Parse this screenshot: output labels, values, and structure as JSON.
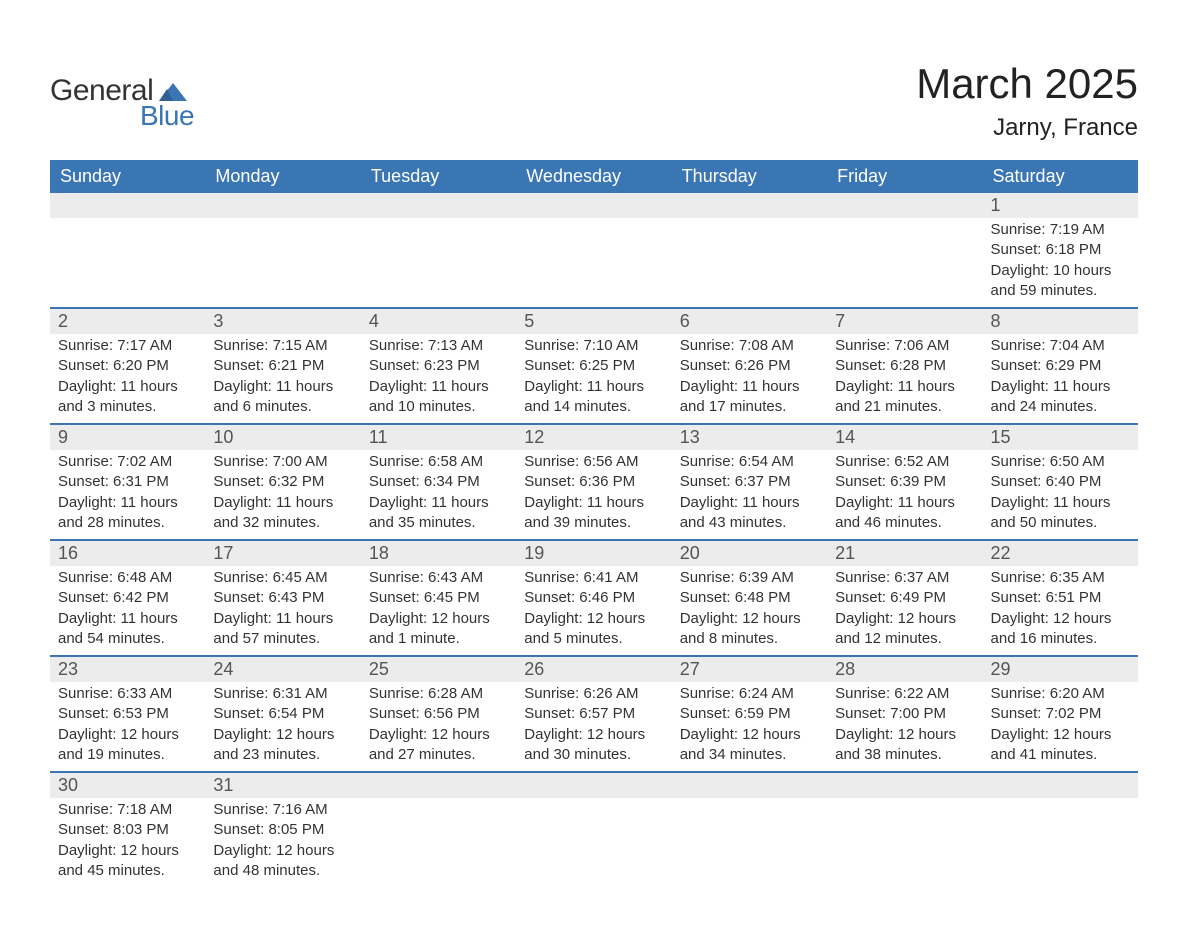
{
  "logo": {
    "text1": "General",
    "text2": "Blue",
    "shape_color": "#3a75b4"
  },
  "title": "March 2025",
  "location": "Jarny, France",
  "colors": {
    "header_bg": "#3a75b4",
    "header_text": "#ffffff",
    "daynum_bg": "#ececec",
    "row_divider": "#3a75b4",
    "text": "#333333",
    "daynum_text": "#555555",
    "page_bg": "#ffffff"
  },
  "day_headers": [
    "Sunday",
    "Monday",
    "Tuesday",
    "Wednesday",
    "Thursday",
    "Friday",
    "Saturday"
  ],
  "weeks": [
    [
      null,
      null,
      null,
      null,
      null,
      null,
      {
        "n": "1",
        "sr": "Sunrise: 7:19 AM",
        "ss": "Sunset: 6:18 PM",
        "dl": "Daylight: 10 hours and 59 minutes."
      }
    ],
    [
      {
        "n": "2",
        "sr": "Sunrise: 7:17 AM",
        "ss": "Sunset: 6:20 PM",
        "dl": "Daylight: 11 hours and 3 minutes."
      },
      {
        "n": "3",
        "sr": "Sunrise: 7:15 AM",
        "ss": "Sunset: 6:21 PM",
        "dl": "Daylight: 11 hours and 6 minutes."
      },
      {
        "n": "4",
        "sr": "Sunrise: 7:13 AM",
        "ss": "Sunset: 6:23 PM",
        "dl": "Daylight: 11 hours and 10 minutes."
      },
      {
        "n": "5",
        "sr": "Sunrise: 7:10 AM",
        "ss": "Sunset: 6:25 PM",
        "dl": "Daylight: 11 hours and 14 minutes."
      },
      {
        "n": "6",
        "sr": "Sunrise: 7:08 AM",
        "ss": "Sunset: 6:26 PM",
        "dl": "Daylight: 11 hours and 17 minutes."
      },
      {
        "n": "7",
        "sr": "Sunrise: 7:06 AM",
        "ss": "Sunset: 6:28 PM",
        "dl": "Daylight: 11 hours and 21 minutes."
      },
      {
        "n": "8",
        "sr": "Sunrise: 7:04 AM",
        "ss": "Sunset: 6:29 PM",
        "dl": "Daylight: 11 hours and 24 minutes."
      }
    ],
    [
      {
        "n": "9",
        "sr": "Sunrise: 7:02 AM",
        "ss": "Sunset: 6:31 PM",
        "dl": "Daylight: 11 hours and 28 minutes."
      },
      {
        "n": "10",
        "sr": "Sunrise: 7:00 AM",
        "ss": "Sunset: 6:32 PM",
        "dl": "Daylight: 11 hours and 32 minutes."
      },
      {
        "n": "11",
        "sr": "Sunrise: 6:58 AM",
        "ss": "Sunset: 6:34 PM",
        "dl": "Daylight: 11 hours and 35 minutes."
      },
      {
        "n": "12",
        "sr": "Sunrise: 6:56 AM",
        "ss": "Sunset: 6:36 PM",
        "dl": "Daylight: 11 hours and 39 minutes."
      },
      {
        "n": "13",
        "sr": "Sunrise: 6:54 AM",
        "ss": "Sunset: 6:37 PM",
        "dl": "Daylight: 11 hours and 43 minutes."
      },
      {
        "n": "14",
        "sr": "Sunrise: 6:52 AM",
        "ss": "Sunset: 6:39 PM",
        "dl": "Daylight: 11 hours and 46 minutes."
      },
      {
        "n": "15",
        "sr": "Sunrise: 6:50 AM",
        "ss": "Sunset: 6:40 PM",
        "dl": "Daylight: 11 hours and 50 minutes."
      }
    ],
    [
      {
        "n": "16",
        "sr": "Sunrise: 6:48 AM",
        "ss": "Sunset: 6:42 PM",
        "dl": "Daylight: 11 hours and 54 minutes."
      },
      {
        "n": "17",
        "sr": "Sunrise: 6:45 AM",
        "ss": "Sunset: 6:43 PM",
        "dl": "Daylight: 11 hours and 57 minutes."
      },
      {
        "n": "18",
        "sr": "Sunrise: 6:43 AM",
        "ss": "Sunset: 6:45 PM",
        "dl": "Daylight: 12 hours and 1 minute."
      },
      {
        "n": "19",
        "sr": "Sunrise: 6:41 AM",
        "ss": "Sunset: 6:46 PM",
        "dl": "Daylight: 12 hours and 5 minutes."
      },
      {
        "n": "20",
        "sr": "Sunrise: 6:39 AM",
        "ss": "Sunset: 6:48 PM",
        "dl": "Daylight: 12 hours and 8 minutes."
      },
      {
        "n": "21",
        "sr": "Sunrise: 6:37 AM",
        "ss": "Sunset: 6:49 PM",
        "dl": "Daylight: 12 hours and 12 minutes."
      },
      {
        "n": "22",
        "sr": "Sunrise: 6:35 AM",
        "ss": "Sunset: 6:51 PM",
        "dl": "Daylight: 12 hours and 16 minutes."
      }
    ],
    [
      {
        "n": "23",
        "sr": "Sunrise: 6:33 AM",
        "ss": "Sunset: 6:53 PM",
        "dl": "Daylight: 12 hours and 19 minutes."
      },
      {
        "n": "24",
        "sr": "Sunrise: 6:31 AM",
        "ss": "Sunset: 6:54 PM",
        "dl": "Daylight: 12 hours and 23 minutes."
      },
      {
        "n": "25",
        "sr": "Sunrise: 6:28 AM",
        "ss": "Sunset: 6:56 PM",
        "dl": "Daylight: 12 hours and 27 minutes."
      },
      {
        "n": "26",
        "sr": "Sunrise: 6:26 AM",
        "ss": "Sunset: 6:57 PM",
        "dl": "Daylight: 12 hours and 30 minutes."
      },
      {
        "n": "27",
        "sr": "Sunrise: 6:24 AM",
        "ss": "Sunset: 6:59 PM",
        "dl": "Daylight: 12 hours and 34 minutes."
      },
      {
        "n": "28",
        "sr": "Sunrise: 6:22 AM",
        "ss": "Sunset: 7:00 PM",
        "dl": "Daylight: 12 hours and 38 minutes."
      },
      {
        "n": "29",
        "sr": "Sunrise: 6:20 AM",
        "ss": "Sunset: 7:02 PM",
        "dl": "Daylight: 12 hours and 41 minutes."
      }
    ],
    [
      {
        "n": "30",
        "sr": "Sunrise: 7:18 AM",
        "ss": "Sunset: 8:03 PM",
        "dl": "Daylight: 12 hours and 45 minutes."
      },
      {
        "n": "31",
        "sr": "Sunrise: 7:16 AM",
        "ss": "Sunset: 8:05 PM",
        "dl": "Daylight: 12 hours and 48 minutes."
      },
      null,
      null,
      null,
      null,
      null
    ]
  ]
}
